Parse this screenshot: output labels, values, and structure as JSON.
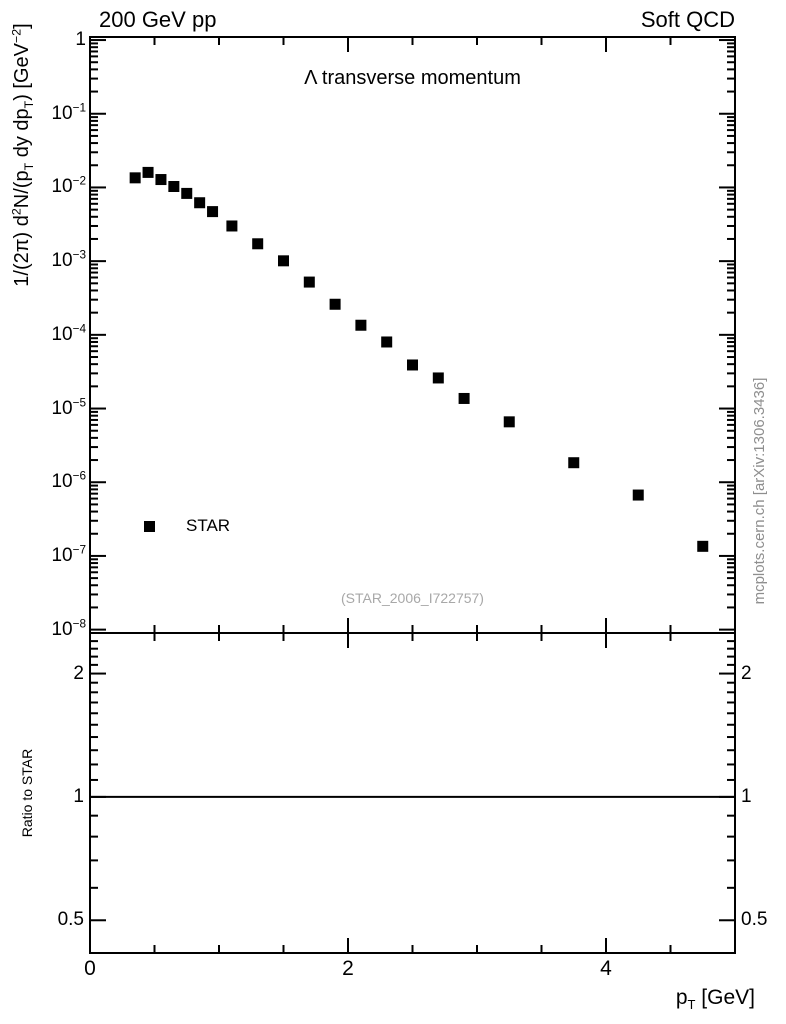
{
  "header": {
    "left": "200 GeV pp",
    "right": "Soft QCD"
  },
  "plot": {
    "title": "Λ transverse momentum",
    "watermark": "(STAR_2006_I722757)",
    "side_credit": "mcplots.cern.ch [arXiv:1306.3436]",
    "legend": [
      {
        "label": "STAR",
        "marker": "filled-square",
        "color": "#000000"
      }
    ]
  },
  "axes": {
    "y_label_parts": [
      {
        "t": "text",
        "s": "1/(2π)  d"
      },
      {
        "t": "sup",
        "s": "2"
      },
      {
        "t": "text",
        "s": "N/(p"
      },
      {
        "t": "sub",
        "s": "T"
      },
      {
        "t": "text",
        "s": " dy dp"
      },
      {
        "t": "sub",
        "s": "T"
      },
      {
        "t": "text",
        "s": ") [GeV"
      },
      {
        "t": "sup",
        "s": "−2"
      },
      {
        "t": "text",
        "s": "]"
      }
    ],
    "x_label_parts": [
      {
        "t": "text",
        "s": "p"
      },
      {
        "t": "sub",
        "s": "T"
      },
      {
        "t": "text",
        "s": " [GeV]"
      }
    ],
    "main_y_ticks": [
      {
        "value": 1,
        "base": "1",
        "exp": null
      },
      {
        "value": 0.1,
        "base": "10",
        "exp": "−1"
      },
      {
        "value": 0.01,
        "base": "10",
        "exp": "−2"
      },
      {
        "value": 0.001,
        "base": "10",
        "exp": "−3"
      },
      {
        "value": 0.0001,
        "base": "10",
        "exp": "−4"
      },
      {
        "value": 1e-05,
        "base": "10",
        "exp": "−5"
      },
      {
        "value": 1e-06,
        "base": "10",
        "exp": "−6"
      },
      {
        "value": 1e-07,
        "base": "10",
        "exp": "−7"
      },
      {
        "value": 1e-08,
        "base": "10",
        "exp": "−8"
      }
    ],
    "ratio_y_label": "Ratio to STAR",
    "ratio_y_ticks": [
      {
        "value": 2,
        "label": "2"
      },
      {
        "value": 1,
        "label": "1"
      },
      {
        "value": 0.5,
        "label": "0.5"
      }
    ],
    "x_ticks": [
      {
        "value": 0,
        "label": "0"
      },
      {
        "value": 2,
        "label": "2"
      },
      {
        "value": 4,
        "label": "4"
      }
    ]
  },
  "colors": {
    "marker": "#000000",
    "frame": "#000000",
    "muted": "#a8a8a8"
  },
  "chart_data": {
    "type": "scatter",
    "title": "Λ transverse momentum",
    "xlabel": "p_T [GeV]",
    "ylabel": "1/(2π) d²N/(p_T dy dp_T) [GeV⁻²]",
    "xlim": [
      0,
      5
    ],
    "ylim": [
      9e-09,
      1.1
    ],
    "yscale": "log",
    "grid": false,
    "legend_position": "lower-left",
    "series": [
      {
        "name": "STAR",
        "marker": "filled-square",
        "color": "#000000",
        "x": [
          0.35,
          0.45,
          0.55,
          0.65,
          0.75,
          0.85,
          0.95,
          1.1,
          1.3,
          1.5,
          1.7,
          1.9,
          2.1,
          2.3,
          2.5,
          2.7,
          2.9,
          3.25,
          3.75,
          4.25,
          4.75
        ],
        "y": [
          0.0135,
          0.016,
          0.0128,
          0.0103,
          0.0083,
          0.0062,
          0.0047,
          0.003,
          0.00172,
          0.00101,
          0.00052,
          0.00026,
          0.000135,
          8e-05,
          3.9e-05,
          2.6e-05,
          1.37e-05,
          6.6e-06,
          1.84e-06,
          6.7e-07,
          1.35e-07
        ]
      }
    ],
    "ratio_panel": {
      "ylabel": "Ratio to STAR",
      "yscale": "log",
      "ylim": [
        0.416,
        2.512
      ],
      "reference_line": 1,
      "major_ticks": [
        0.5,
        1,
        2
      ]
    }
  }
}
